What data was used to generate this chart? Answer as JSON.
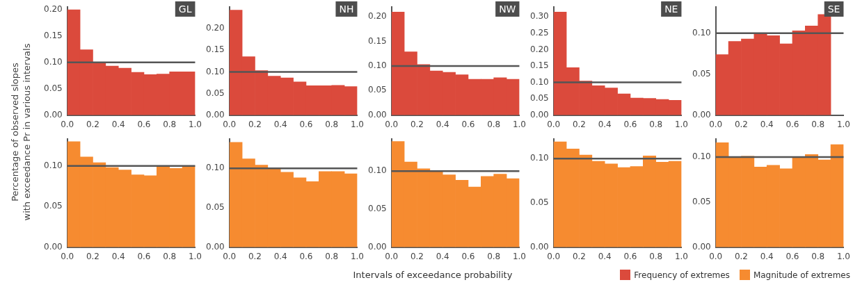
{
  "chart_data": [
    {
      "type": "histogram",
      "title": "GL",
      "ylabel": "Percentage of observed slopes\nwith exceedance Pr in various intervals",
      "bins": [
        0,
        0.1,
        0.2,
        0.3,
        0.4,
        0.5,
        0.6,
        0.7,
        0.8,
        0.9,
        1.0
      ],
      "legend": "bottom right",
      "series": [
        {
          "name": "Frequency of extremes",
          "color": "#db4a3c",
          "values": [
            0.2,
            0.124,
            0.099,
            0.093,
            0.089,
            0.081,
            0.077,
            0.078,
            0.082,
            0.082
          ]
        }
      ],
      "ylim": [
        0,
        0.205
      ],
      "yticks": [
        {
          "value": 0,
          "label": "0.00"
        },
        {
          "value": 0.05,
          "label": "0.05"
        },
        {
          "value": 0.1,
          "label": "0.10"
        },
        {
          "value": 0.15,
          "label": "0.15"
        },
        {
          "value": 0.2,
          "label": "0.20"
        }
      ],
      "xlim": [
        0,
        1
      ],
      "xticks": [
        {
          "value": 0,
          "label": "0.0"
        },
        {
          "value": 0.2,
          "label": "0.2"
        },
        {
          "value": 0.4,
          "label": "0.4"
        },
        {
          "value": 0.6,
          "label": "0.6"
        },
        {
          "value": 0.8,
          "label": "0.8"
        },
        {
          "value": 1,
          "label": "1.0"
        }
      ],
      "ref_lines": [
        {
          "axis": "y",
          "value": 0.1,
          "color": "#555555"
        }
      ]
    },
    {
      "type": "histogram",
      "title": "NH",
      "bins": [
        0,
        0.1,
        0.2,
        0.3,
        0.4,
        0.5,
        0.6,
        0.7,
        0.8,
        0.9,
        1.0
      ],
      "series": [
        {
          "color": "#db4a3c",
          "values": [
            0.243,
            0.135,
            0.103,
            0.09,
            0.086,
            0.077,
            0.068,
            0.068,
            0.069,
            0.066
          ]
        }
      ],
      "ylim": [
        0,
        0.25
      ],
      "yticks": [
        {
          "value": 0,
          "label": "0.00"
        },
        {
          "value": 0.05,
          "label": "0.05"
        },
        {
          "value": 0.1,
          "label": "0.10"
        },
        {
          "value": 0.15,
          "label": "0.15"
        },
        {
          "value": 0.2,
          "label": "0.20"
        }
      ],
      "xlim": [
        0,
        1
      ],
      "xticks": [
        {
          "value": 0,
          "label": "0.0"
        },
        {
          "value": 0.2,
          "label": "0.2"
        },
        {
          "value": 0.4,
          "label": "0.4"
        },
        {
          "value": 0.6,
          "label": "0.6"
        },
        {
          "value": 0.8,
          "label": "0.8"
        },
        {
          "value": 1,
          "label": "1.0"
        }
      ],
      "ref_lines": [
        {
          "axis": "y",
          "value": 0.1,
          "color": "#555555"
        }
      ]
    },
    {
      "type": "histogram",
      "title": "NW",
      "bins": [
        0,
        0.1,
        0.2,
        0.3,
        0.4,
        0.5,
        0.6,
        0.7,
        0.8,
        0.9,
        1.0
      ],
      "series": [
        {
          "color": "#db4a3c",
          "values": [
            0.21,
            0.129,
            0.103,
            0.09,
            0.087,
            0.082,
            0.073,
            0.073,
            0.076,
            0.073
          ]
        }
      ],
      "ylim": [
        0,
        0.22
      ],
      "yticks": [
        {
          "value": 0,
          "label": "0.00"
        },
        {
          "value": 0.05,
          "label": "0.05"
        },
        {
          "value": 0.1,
          "label": "0.10"
        },
        {
          "value": 0.15,
          "label": "0.15"
        },
        {
          "value": 0.2,
          "label": "0.20"
        }
      ],
      "xlim": [
        0,
        1
      ],
      "xticks": [
        {
          "value": 0,
          "label": "0.0"
        },
        {
          "value": 0.2,
          "label": "0.2"
        },
        {
          "value": 0.4,
          "label": "0.4"
        },
        {
          "value": 0.6,
          "label": "0.6"
        },
        {
          "value": 0.8,
          "label": "0.8"
        },
        {
          "value": 1,
          "label": "1.0"
        }
      ],
      "ref_lines": [
        {
          "axis": "y",
          "value": 0.1,
          "color": "#555555"
        }
      ]
    },
    {
      "type": "histogram",
      "title": "NE",
      "bins": [
        0,
        0.1,
        0.2,
        0.3,
        0.4,
        0.5,
        0.6,
        0.7,
        0.8,
        0.9,
        1.0
      ],
      "series": [
        {
          "color": "#db4a3c",
          "values": [
            0.315,
            0.145,
            0.104,
            0.09,
            0.083,
            0.065,
            0.052,
            0.051,
            0.048,
            0.045
          ]
        }
      ],
      "ylim": [
        0,
        0.33
      ],
      "yticks": [
        {
          "value": 0,
          "label": "0.00"
        },
        {
          "value": 0.05,
          "label": "0.05"
        },
        {
          "value": 0.1,
          "label": "0.10"
        },
        {
          "value": 0.15,
          "label": "0.15"
        },
        {
          "value": 0.2,
          "label": "0.20"
        },
        {
          "value": 0.25,
          "label": "0.25"
        },
        {
          "value": 0.3,
          "label": "0.30"
        }
      ],
      "xlim": [
        0,
        1
      ],
      "xticks": [
        {
          "value": 0,
          "label": "0.0"
        },
        {
          "value": 0.2,
          "label": "0.2"
        },
        {
          "value": 0.4,
          "label": "0.4"
        },
        {
          "value": 0.6,
          "label": "0.6"
        },
        {
          "value": 0.8,
          "label": "0.8"
        },
        {
          "value": 1,
          "label": "1.0"
        }
      ],
      "ref_lines": [
        {
          "axis": "y",
          "value": 0.1,
          "color": "#555555"
        }
      ]
    },
    {
      "type": "histogram",
      "title": "SE",
      "bins": [
        0,
        0.1,
        0.2,
        0.3,
        0.4,
        0.5,
        0.6,
        0.7,
        0.8,
        0.9,
        1.0
      ],
      "series": [
        {
          "color": "#db4a3c",
          "values": [
            0.074,
            0.09,
            0.093,
            0.1,
            0.097,
            0.087,
            0.103,
            0.109,
            0.123,
            null
          ]
        }
      ],
      "ylim": [
        0,
        0.132
      ],
      "yticks": [
        {
          "value": 0,
          "label": "0.00"
        },
        {
          "value": 0.05,
          "label": "0.05"
        },
        {
          "value": 0.1,
          "label": "0.10"
        }
      ],
      "xlim": [
        0,
        1
      ],
      "xticks": [
        {
          "value": 0,
          "label": "0.0"
        },
        {
          "value": 0.2,
          "label": "0.2"
        },
        {
          "value": 0.4,
          "label": "0.4"
        },
        {
          "value": 0.6,
          "label": "0.6"
        },
        {
          "value": 0.8,
          "label": "0.8"
        },
        {
          "value": 1,
          "label": "1.0"
        }
      ],
      "ref_lines": [
        {
          "axis": "y",
          "value": 0.1,
          "color": "#555555"
        }
      ]
    },
    {
      "type": "histogram",
      "bins": [
        0,
        0.1,
        0.2,
        0.3,
        0.4,
        0.5,
        0.6,
        0.7,
        0.8,
        0.9,
        1.0
      ],
      "legend": "bottom right",
      "series": [
        {
          "name": "Magnitude of extremes",
          "color": "#f68b30",
          "values": [
            0.13,
            0.111,
            0.104,
            0.098,
            0.095,
            0.089,
            0.088,
            0.1,
            0.097,
            0.1
          ]
        }
      ],
      "ylim": [
        0,
        0.133
      ],
      "yticks": [
        {
          "value": 0,
          "label": "0.00"
        },
        {
          "value": 0.05,
          "label": "0.05"
        },
        {
          "value": 0.1,
          "label": "0.10"
        }
      ],
      "xlim": [
        0,
        1
      ],
      "xticks": [
        {
          "value": 0,
          "label": "0.0"
        },
        {
          "value": 0.2,
          "label": "0.2"
        },
        {
          "value": 0.4,
          "label": "0.4"
        },
        {
          "value": 0.6,
          "label": "0.6"
        },
        {
          "value": 0.8,
          "label": "0.8"
        },
        {
          "value": 1,
          "label": "1.0"
        }
      ],
      "ref_lines": [
        {
          "axis": "y",
          "value": 0.1,
          "color": "#555555"
        }
      ]
    },
    {
      "type": "histogram",
      "bins": [
        0,
        0.1,
        0.2,
        0.3,
        0.4,
        0.5,
        0.6,
        0.7,
        0.8,
        0.9,
        1.0
      ],
      "series": [
        {
          "color": "#f68b30",
          "values": [
            0.133,
            0.112,
            0.104,
            0.099,
            0.095,
            0.088,
            0.083,
            0.096,
            0.096,
            0.093
          ]
        }
      ],
      "ylim": [
        0,
        0.137
      ],
      "yticks": [
        {
          "value": 0,
          "label": "0.00"
        },
        {
          "value": 0.05,
          "label": "0.05"
        },
        {
          "value": 0.1,
          "label": "0.10"
        }
      ],
      "xlim": [
        0,
        1
      ],
      "xticks": [
        {
          "value": 0,
          "label": "0.0"
        },
        {
          "value": 0.2,
          "label": "0.2"
        },
        {
          "value": 0.4,
          "label": "0.4"
        },
        {
          "value": 0.6,
          "label": "0.6"
        },
        {
          "value": 0.8,
          "label": "0.8"
        },
        {
          "value": 1,
          "label": "1.0"
        }
      ],
      "ref_lines": [
        {
          "axis": "y",
          "value": 0.1,
          "color": "#555555"
        }
      ]
    },
    {
      "type": "histogram",
      "xlabel": "Intervals of exceedance probability",
      "bins": [
        0,
        0.1,
        0.2,
        0.3,
        0.4,
        0.5,
        0.6,
        0.7,
        0.8,
        0.9,
        1.0
      ],
      "series": [
        {
          "color": "#f68b30",
          "values": [
            0.139,
            0.112,
            0.103,
            0.1,
            0.095,
            0.088,
            0.079,
            0.093,
            0.096,
            0.09
          ]
        }
      ],
      "ylim": [
        0,
        0.142
      ],
      "yticks": [
        {
          "value": 0,
          "label": "0.00"
        },
        {
          "value": 0.05,
          "label": "0.05"
        },
        {
          "value": 0.1,
          "label": "0.10"
        }
      ],
      "xlim": [
        0,
        1
      ],
      "xticks": [
        {
          "value": 0,
          "label": "0.0"
        },
        {
          "value": 0.2,
          "label": "0.2"
        },
        {
          "value": 0.4,
          "label": "0.4"
        },
        {
          "value": 0.6,
          "label": "0.6"
        },
        {
          "value": 0.8,
          "label": "0.8"
        },
        {
          "value": 1,
          "label": "1.0"
        }
      ],
      "ref_lines": [
        {
          "axis": "y",
          "value": 0.1,
          "color": "#555555"
        }
      ]
    },
    {
      "type": "histogram",
      "bins": [
        0,
        0.1,
        0.2,
        0.3,
        0.4,
        0.5,
        0.6,
        0.7,
        0.8,
        0.9,
        1.0
      ],
      "series": [
        {
          "color": "#f68b30",
          "values": [
            0.119,
            0.111,
            0.104,
            0.097,
            0.094,
            0.09,
            0.091,
            0.103,
            0.096,
            0.097
          ]
        }
      ],
      "ylim": [
        0,
        0.122
      ],
      "yticks": [
        {
          "value": 0,
          "label": "0.00"
        },
        {
          "value": 0.05,
          "label": "0.05"
        },
        {
          "value": 0.1,
          "label": "0.10"
        }
      ],
      "xlim": [
        0,
        1
      ],
      "xticks": [
        {
          "value": 0,
          "label": "0.0"
        },
        {
          "value": 0.2,
          "label": "0.2"
        },
        {
          "value": 0.4,
          "label": "0.4"
        },
        {
          "value": 0.6,
          "label": "0.6"
        },
        {
          "value": 0.8,
          "label": "0.8"
        },
        {
          "value": 1,
          "label": "1.0"
        }
      ],
      "ref_lines": [
        {
          "axis": "y",
          "value": 0.1,
          "color": "#555555"
        }
      ]
    },
    {
      "type": "histogram",
      "bins": [
        0,
        0.1,
        0.2,
        0.3,
        0.4,
        0.5,
        0.6,
        0.7,
        0.8,
        0.9,
        1.0
      ],
      "series": [
        {
          "color": "#f68b30",
          "values": [
            0.116,
            0.1,
            0.101,
            0.089,
            0.091,
            0.087,
            0.1,
            0.103,
            0.097,
            0.114
          ]
        }
      ],
      "ylim": [
        0,
        0.12
      ],
      "yticks": [
        {
          "value": 0,
          "label": "0.00"
        },
        {
          "value": 0.05,
          "label": "0.05"
        },
        {
          "value": 0.1,
          "label": "0.10"
        }
      ],
      "xlim": [
        0,
        1
      ],
      "xticks": [
        {
          "value": 0,
          "label": "0.0"
        },
        {
          "value": 0.2,
          "label": "0.2"
        },
        {
          "value": 0.4,
          "label": "0.4"
        },
        {
          "value": 0.6,
          "label": "0.6"
        },
        {
          "value": 0.8,
          "label": "0.8"
        },
        {
          "value": 1,
          "label": "1.0"
        }
      ],
      "ref_lines": [
        {
          "axis": "y",
          "value": 0.1,
          "color": "#555555"
        }
      ]
    }
  ]
}
